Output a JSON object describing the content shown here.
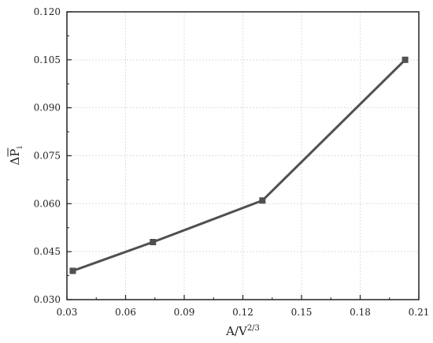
{
  "chart_data": {
    "type": "line",
    "x": [
      0.033,
      0.074,
      0.13,
      0.203
    ],
    "y": [
      0.039,
      0.048,
      0.061,
      0.105
    ],
    "xlim": [
      0.03,
      0.21
    ],
    "ylim": [
      0.03,
      0.12
    ],
    "xticks": [
      "0.03",
      "0.06",
      "0.09",
      "0.12",
      "0.15",
      "0.18",
      "0.21"
    ],
    "yticks": [
      "0.030",
      "0.045",
      "0.060",
      "0.075",
      "0.090",
      "0.105",
      "0.120"
    ],
    "xlabel": {
      "base": "A/V",
      "sup": "2/3"
    },
    "ylabel": {
      "base": "ΔP",
      "sub": "i"
    },
    "grid": true,
    "line_color": "#505050",
    "marker": "square"
  }
}
